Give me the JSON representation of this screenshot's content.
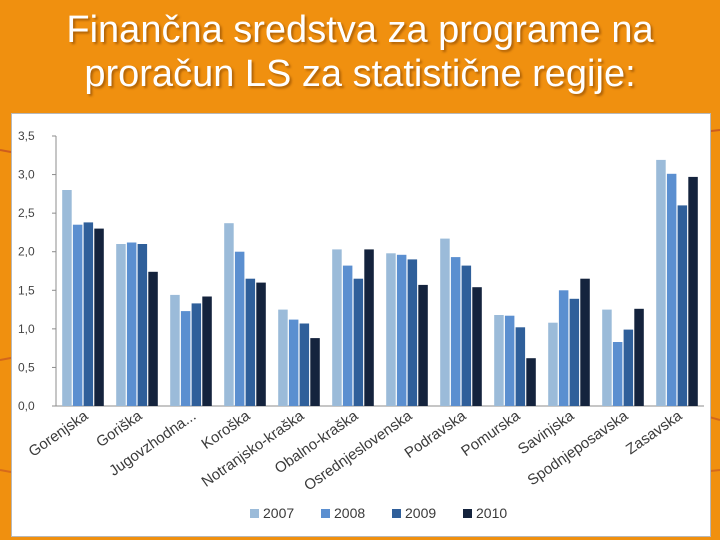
{
  "slide": {
    "title_line1": "Finančna sredstva za programe na",
    "title_line2": "proračun LS za statistične regije:"
  },
  "colors": {
    "background": "#f0900f",
    "series": [
      "#9bbbd9",
      "#5b8fd0",
      "#2f5f9a",
      "#14233d"
    ]
  },
  "chart_data": {
    "type": "bar",
    "title": "",
    "xlabel": "",
    "ylabel": "",
    "ylim": [
      0,
      3.5
    ],
    "yticks": [
      "0,0",
      "0,5",
      "1,0",
      "1,5",
      "2,0",
      "2,5",
      "3,0",
      "3,5"
    ],
    "grid": false,
    "legend": "bottom",
    "categories": [
      "Gorenjska",
      "Goriška",
      "Jugovzhodna...",
      "Koroška",
      "Notranjsko-kraška",
      "Obalno-kraška",
      "Osrednjeslovenska",
      "Podravska",
      "Pomurska",
      "Savinjska",
      "Spodnjeposavska",
      "Zasavska"
    ],
    "series": [
      {
        "name": "2007",
        "values": [
          2.8,
          2.1,
          1.44,
          2.37,
          1.25,
          2.03,
          1.98,
          2.17,
          1.18,
          1.08,
          1.25,
          3.19
        ]
      },
      {
        "name": "2008",
        "values": [
          2.35,
          2.12,
          1.23,
          2.0,
          1.12,
          1.82,
          1.96,
          1.93,
          1.17,
          1.5,
          0.83,
          3.01
        ]
      },
      {
        "name": "2009",
        "values": [
          2.38,
          2.1,
          1.33,
          1.65,
          1.07,
          1.65,
          1.9,
          1.82,
          1.02,
          1.39,
          0.99,
          2.6
        ]
      },
      {
        "name": "2010",
        "values": [
          2.3,
          1.74,
          1.42,
          1.6,
          0.88,
          2.03,
          1.57,
          1.54,
          0.62,
          1.65,
          1.26,
          2.97
        ]
      }
    ]
  }
}
